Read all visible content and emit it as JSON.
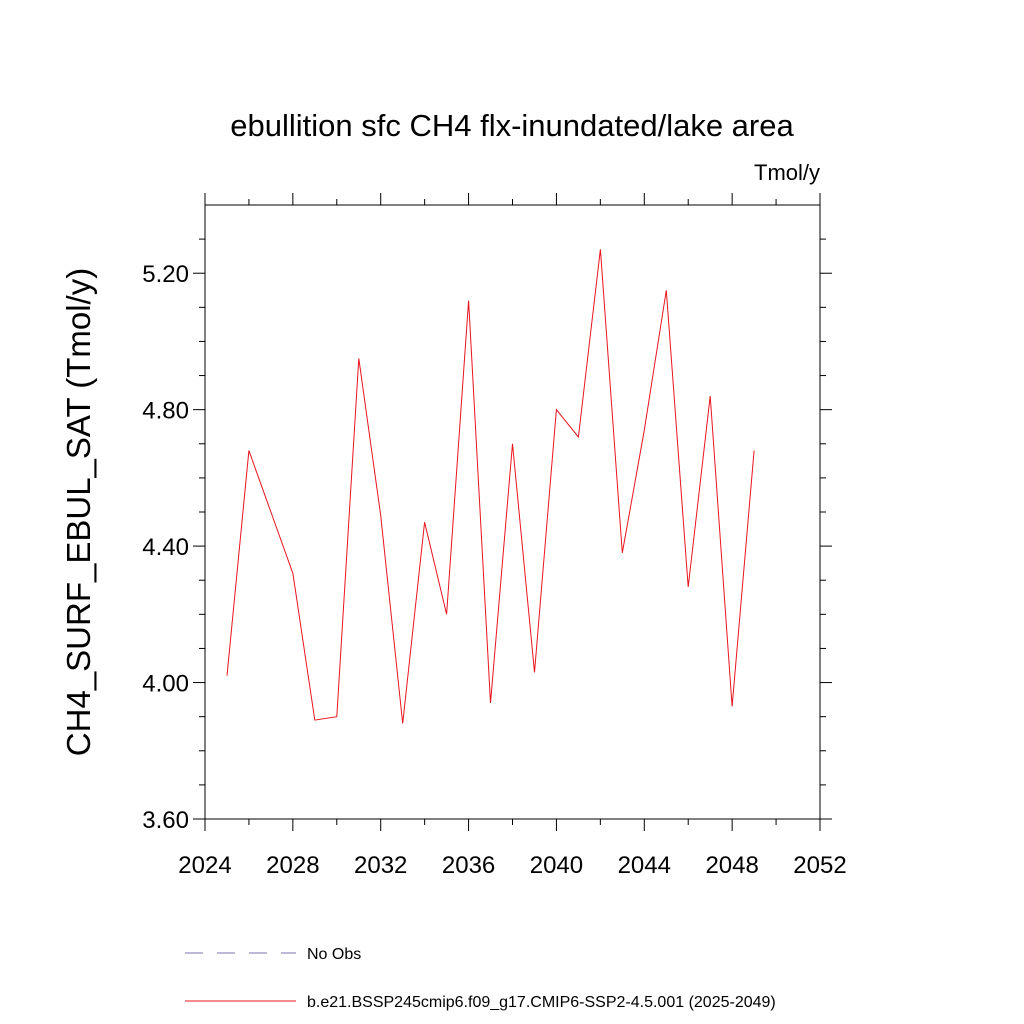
{
  "chart_data": {
    "type": "line",
    "title": "ebullition sfc CH4 flx-inundated/lake area",
    "units": "Tmol/y",
    "xlabel": "",
    "ylabel": "CH4_SURF_EBUL_SAT  (Tmol/y)",
    "xlim": [
      2024,
      2052
    ],
    "ylim": [
      3.6,
      5.4
    ],
    "xticks": [
      2024,
      2028,
      2032,
      2036,
      2040,
      2044,
      2048,
      2052
    ],
    "xtick_labels": [
      "2024",
      "2028",
      "2032",
      "2036",
      "2040",
      "2044",
      "2048",
      "2052"
    ],
    "yticks": [
      3.6,
      4.0,
      4.4,
      4.8,
      5.2
    ],
    "ytick_labels": [
      "3.60",
      "4.00",
      "4.40",
      "4.80",
      "5.20"
    ],
    "grid": false,
    "legend_position": "bottom",
    "series": [
      {
        "name": "No Obs",
        "color": "#7b6fb0",
        "dash": "dashed",
        "x": [],
        "y": []
      },
      {
        "name": "b.e21.BSSP245cmip6.f09_g17.CMIP6-SSP2-4.5.001 (2025-2049)",
        "color": "#e8141e",
        "dash": "solid",
        "x": [
          2025,
          2026,
          2027,
          2028,
          2029,
          2030,
          2031,
          2032,
          2033,
          2034,
          2035,
          2036,
          2037,
          2038,
          2039,
          2040,
          2041,
          2042,
          2043,
          2044,
          2045,
          2046,
          2047,
          2048,
          2049
        ],
        "y": [
          4.02,
          4.68,
          4.5,
          4.32,
          3.89,
          3.9,
          4.95,
          4.49,
          3.88,
          4.47,
          4.2,
          5.12,
          3.94,
          4.7,
          4.03,
          4.8,
          4.72,
          5.27,
          4.38,
          4.74,
          5.15,
          4.28,
          4.84,
          3.93,
          4.68
        ]
      }
    ]
  }
}
